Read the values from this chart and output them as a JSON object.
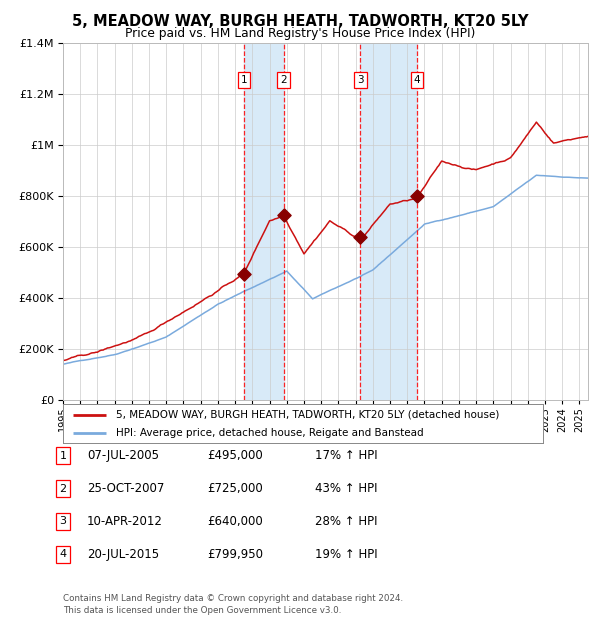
{
  "title": "5, MEADOW WAY, BURGH HEATH, TADWORTH, KT20 5LY",
  "subtitle": "Price paid vs. HM Land Registry's House Price Index (HPI)",
  "legend_line1": "5, MEADOW WAY, BURGH HEATH, TADWORTH, KT20 5LY (detached house)",
  "legend_line2": "HPI: Average price, detached house, Reigate and Banstead",
  "footer": "Contains HM Land Registry data © Crown copyright and database right 2024.\nThis data is licensed under the Open Government Licence v3.0.",
  "transactions": [
    {
      "num": 1,
      "date": "07-JUL-2005",
      "price": "£495,000",
      "hpi": "17% ↑ HPI",
      "year": 2005.52
    },
    {
      "num": 2,
      "date": "25-OCT-2007",
      "price": "£725,000",
      "hpi": "43% ↑ HPI",
      "year": 2007.82
    },
    {
      "num": 3,
      "date": "10-APR-2012",
      "price": "£640,000",
      "hpi": "28% ↑ HPI",
      "year": 2012.28
    },
    {
      "num": 4,
      "date": "20-JUL-2015",
      "price": "£799,950",
      "hpi": "19% ↑ HPI",
      "year": 2015.55
    }
  ],
  "transaction_values": [
    495000,
    725000,
    640000,
    799950
  ],
  "hpi_color": "#7aaadd",
  "price_color": "#cc1111",
  "shade_color": "#d8eaf8",
  "grid_color": "#cccccc",
  "background_color": "#ffffff",
  "ylim": [
    0,
    1400000
  ],
  "xlim_start": 1995.0,
  "xlim_end": 2025.5
}
